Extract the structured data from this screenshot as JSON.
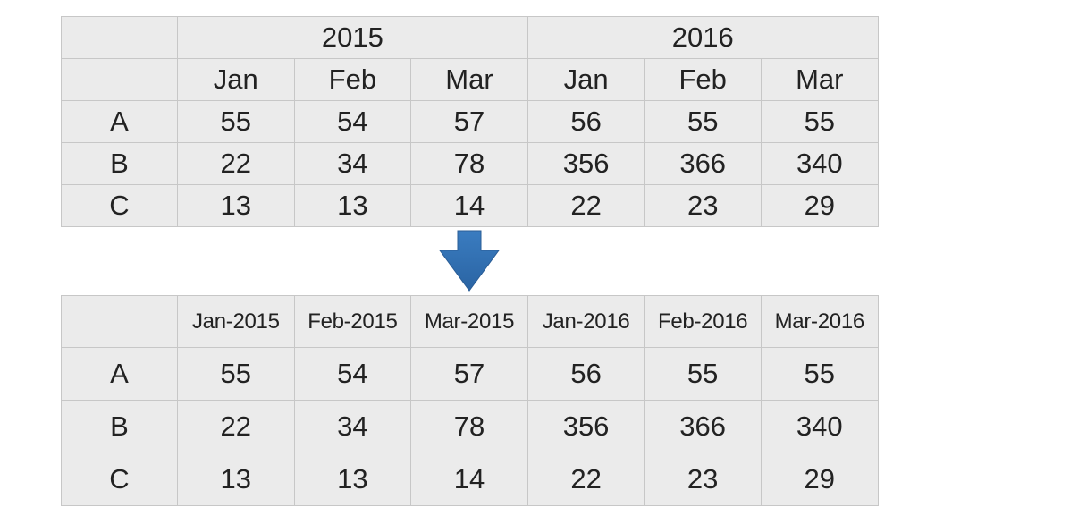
{
  "top_table": {
    "years": [
      "2015",
      "2016"
    ],
    "months": [
      "Jan",
      "Feb",
      "Mar",
      "Jan",
      "Feb",
      "Mar"
    ],
    "rows": [
      {
        "label": "A",
        "values": [
          "55",
          "54",
          "57",
          "56",
          "55",
          "55"
        ]
      },
      {
        "label": "B",
        "values": [
          "22",
          "34",
          "78",
          "356",
          "366",
          "340"
        ]
      },
      {
        "label": "C",
        "values": [
          "13",
          "13",
          "14",
          "22",
          "23",
          "29"
        ]
      }
    ]
  },
  "arrow": {
    "icon": "down-arrow-icon",
    "color": "#2f6fb1"
  },
  "bottom_table": {
    "columns": [
      "Jan-2015",
      "Feb-2015",
      "Mar-2015",
      "Jan-2016",
      "Feb-2016",
      "Mar-2016"
    ],
    "rows": [
      {
        "label": "A",
        "values": [
          "55",
          "54",
          "57",
          "56",
          "55",
          "55"
        ]
      },
      {
        "label": "B",
        "values": [
          "22",
          "34",
          "78",
          "356",
          "366",
          "340"
        ]
      },
      {
        "label": "C",
        "values": [
          "13",
          "13",
          "14",
          "22",
          "23",
          "29"
        ]
      }
    ]
  },
  "colors": {
    "cell_background": "#ebebeb",
    "cell_border": "#c7c7c7",
    "text": "#222222"
  }
}
